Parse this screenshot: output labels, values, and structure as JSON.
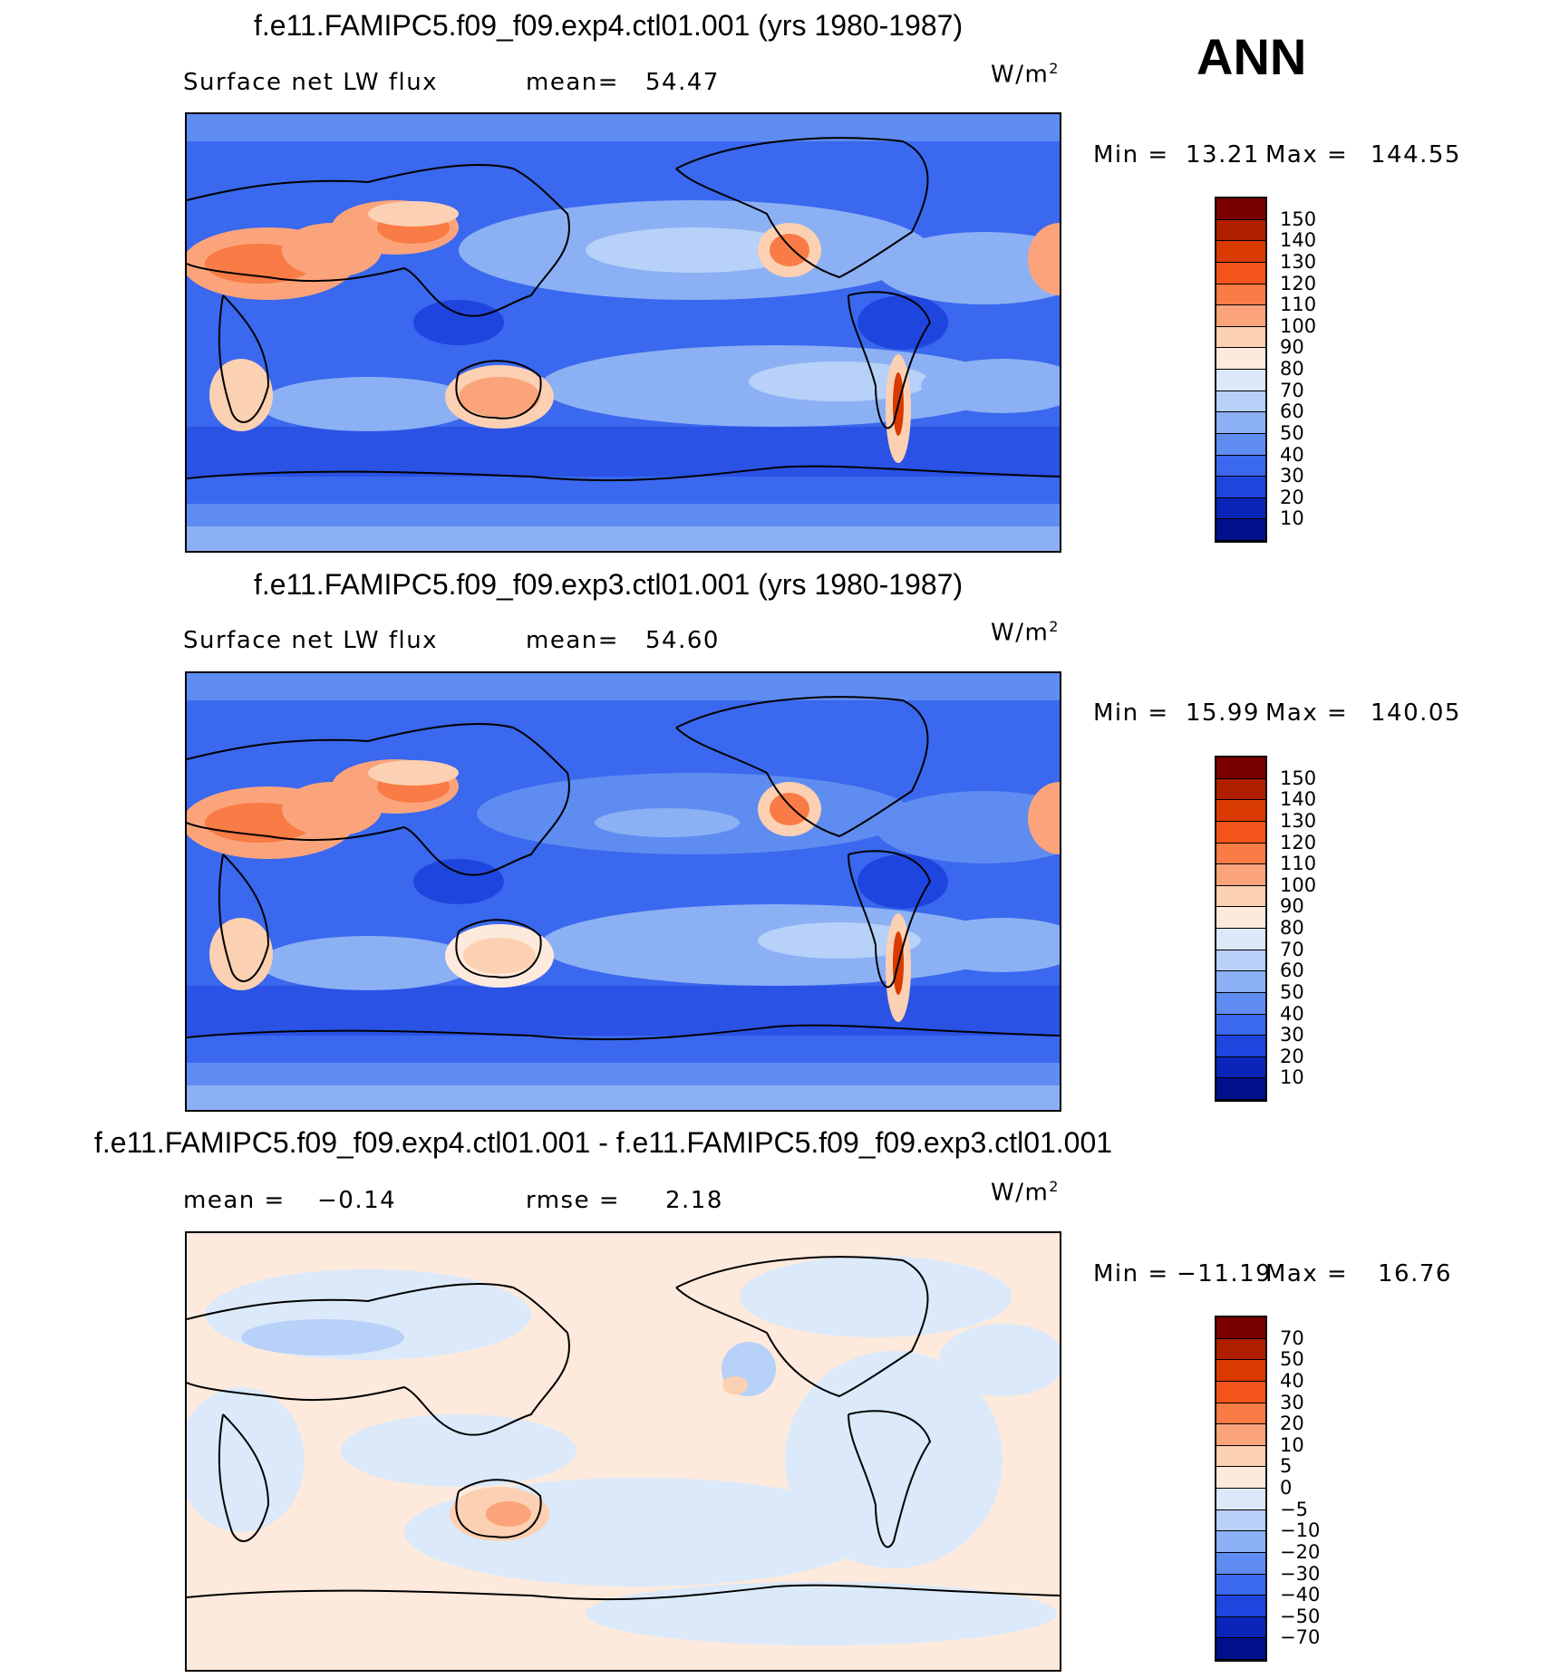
{
  "season": "ANN",
  "units_label": "W/m",
  "units_sup": "2",
  "panels": [
    {
      "title": "f.e11.FAMIPC5.f09_f09.exp4.ctl01.001 (yrs 1980-1987)",
      "left_label": "Surface net LW flux",
      "stat1_label": "mean=",
      "stat1_value": "54.47",
      "min_label": "Min =",
      "min_value": "13.21",
      "max_label": "Max =",
      "max_value": "144.55",
      "levels": [
        "150",
        "140",
        "130",
        "120",
        "110",
        "100",
        "90",
        "80",
        "70",
        "60",
        "50",
        "40",
        "30",
        "20",
        "10"
      ]
    },
    {
      "title": "f.e11.FAMIPC5.f09_f09.exp3.ctl01.001 (yrs 1980-1987)",
      "left_label": "Surface net LW flux",
      "stat1_label": "mean=",
      "stat1_value": "54.60",
      "min_label": "Min =",
      "min_value": "15.99",
      "max_label": "Max =",
      "max_value": "140.05",
      "levels": [
        "150",
        "140",
        "130",
        "120",
        "110",
        "100",
        "90",
        "80",
        "70",
        "60",
        "50",
        "40",
        "30",
        "20",
        "10"
      ]
    },
    {
      "title": "f.e11.FAMIPC5.f09_f09.exp4.ctl01.001 - f.e11.FAMIPC5.f09_f09.exp3.ctl01.001",
      "left_label": "mean =",
      "left_value": "−0.14",
      "stat1_label": "rmse =",
      "stat1_value": "2.18",
      "min_label": "Min =",
      "min_value": "−11.19",
      "max_label": "Max =",
      "max_value": "16.76",
      "levels": [
        "70",
        "50",
        "40",
        "30",
        "20",
        "10",
        "5",
        "0",
        "−5",
        "−10",
        "−20",
        "−30",
        "−40",
        "−50",
        "−70"
      ]
    }
  ],
  "colors": {
    "abs_scale": [
      "#7a0000",
      "#b01e00",
      "#d93a00",
      "#f2541a",
      "#f97b45",
      "#fba47c",
      "#fcd0b2",
      "#fdeadc",
      "#dbe9fb",
      "#b7d1f8",
      "#8cb0f4",
      "#5f8cf0",
      "#3a68ee",
      "#1f45df",
      "#0a25b8",
      "#00108a"
    ],
    "diff_scale": [
      "#7a0000",
      "#b01e00",
      "#d93a00",
      "#f2541a",
      "#f97b45",
      "#fba47c",
      "#fcd0b2",
      "#fdeadc",
      "#dbe9fb",
      "#b7d1f8",
      "#8cb0f4",
      "#5f8cf0",
      "#3a68ee",
      "#1f45df",
      "#0a25b8",
      "#00108a"
    ]
  }
}
